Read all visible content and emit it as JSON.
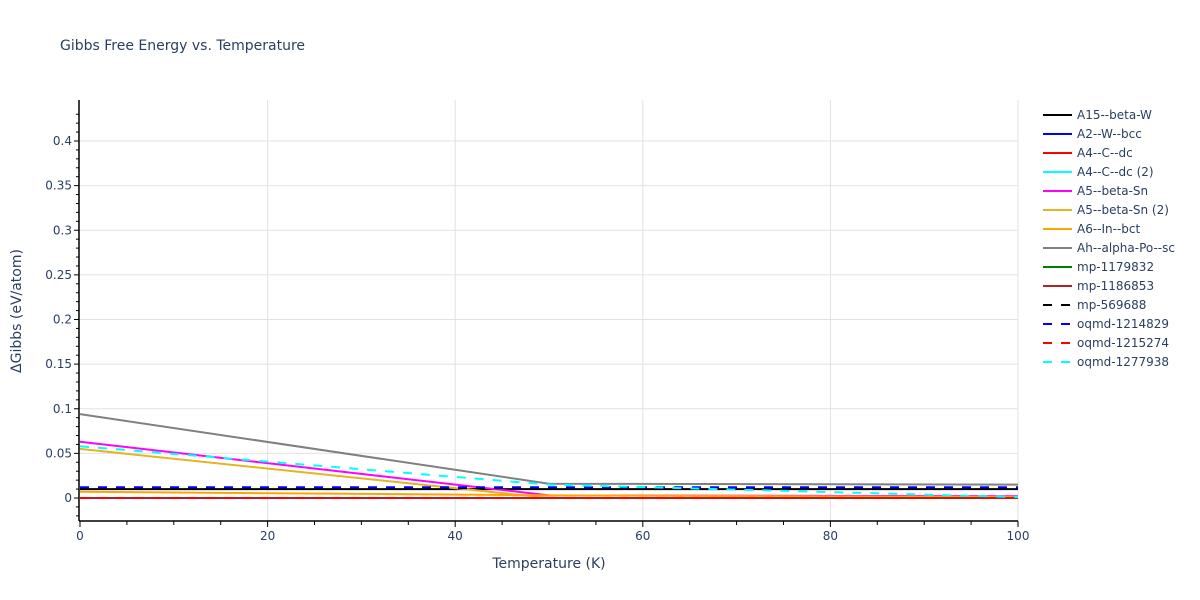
{
  "chart_data": {
    "type": "line",
    "title": "Gibbs Free Energy vs. Temperature",
    "xlabel": "Temperature (K)",
    "ylabel": "ΔGibbs (eV/atom)",
    "xlim": [
      0,
      100
    ],
    "ylim": [
      -0.025,
      0.445
    ],
    "x_ticks": [
      0,
      20,
      40,
      60,
      80,
      100
    ],
    "y_ticks": [
      0,
      0.05,
      0.1,
      0.15,
      0.2,
      0.25,
      0.3,
      0.35,
      0.4
    ],
    "y_tick_labels": [
      "0",
      "0.05",
      "0.1",
      "0.15",
      "0.2",
      "0.25",
      "0.3",
      "0.35",
      "0.4"
    ],
    "x_tick_labels": [
      "0",
      "20",
      "40",
      "60",
      "80",
      "100"
    ],
    "grid": true,
    "legend_position": "right",
    "x": [
      0,
      50,
      100
    ],
    "series": [
      {
        "name": "A15--beta-W",
        "color": "#000000",
        "dash": "solid",
        "x": [
          0,
          50,
          100
        ],
        "values": [
          0.01,
          0.01,
          0.01
        ]
      },
      {
        "name": "A2--W--bcc",
        "color": "#0000ff",
        "dash": "solid",
        "x": [
          0,
          50,
          100
        ],
        "values": [
          0.0,
          0.0,
          0.0
        ]
      },
      {
        "name": "A4--C--dc",
        "color": "#ff0000",
        "dash": "solid",
        "x": [
          0,
          50,
          100
        ],
        "values": [
          0.0,
          0.0,
          0.0
        ]
      },
      {
        "name": "A4--C--dc (2)",
        "color": "#00ffff",
        "dash": "solid",
        "x": [
          0,
          50,
          100
        ],
        "values": [
          0.0,
          0.0,
          0.0
        ]
      },
      {
        "name": "A5--beta-Sn",
        "color": "#ff00ff",
        "dash": "solid",
        "x": [
          0,
          50,
          100
        ],
        "values": [
          0.063,
          0.003,
          0.002
        ]
      },
      {
        "name": "A5--beta-Sn (2)",
        "color": "#e6b422",
        "dash": "solid",
        "x": [
          0,
          50,
          100
        ],
        "values": [
          0.055,
          0.0,
          0.0
        ]
      },
      {
        "name": "A6--In--bct",
        "color": "#ffa500",
        "dash": "solid",
        "x": [
          0,
          50,
          100
        ],
        "values": [
          0.007,
          0.003,
          0.001
        ]
      },
      {
        "name": "Ah--alpha-Po--sc",
        "color": "#808080",
        "dash": "solid",
        "x": [
          0,
          50,
          100
        ],
        "values": [
          0.094,
          0.016,
          0.015
        ]
      },
      {
        "name": "mp-1179832",
        "color": "#008000",
        "dash": "solid",
        "x": [
          0,
          50,
          100
        ],
        "values": [
          0.0,
          0.0,
          0.0
        ]
      },
      {
        "name": "mp-1186853",
        "color": "#b22222",
        "dash": "solid",
        "x": [
          0,
          50,
          100
        ],
        "values": [
          0.0,
          0.0,
          0.0
        ]
      },
      {
        "name": "mp-569688",
        "color": "#000000",
        "dash": "dash",
        "x": [
          0,
          50,
          100
        ],
        "values": [
          0.011,
          0.011,
          0.011
        ]
      },
      {
        "name": "oqmd-1214829",
        "color": "#0000ff",
        "dash": "dash",
        "x": [
          0,
          50,
          100
        ],
        "values": [
          0.012,
          0.012,
          0.012
        ]
      },
      {
        "name": "oqmd-1215274",
        "color": "#ff0000",
        "dash": "dash",
        "x": [
          0,
          50,
          100
        ],
        "values": [
          0.0,
          0.0,
          0.0
        ]
      },
      {
        "name": "oqmd-1277938",
        "color": "#00ffff",
        "dash": "dash",
        "x": [
          0,
          50,
          100
        ],
        "values": [
          0.058,
          0.015,
          0.001
        ]
      }
    ]
  }
}
